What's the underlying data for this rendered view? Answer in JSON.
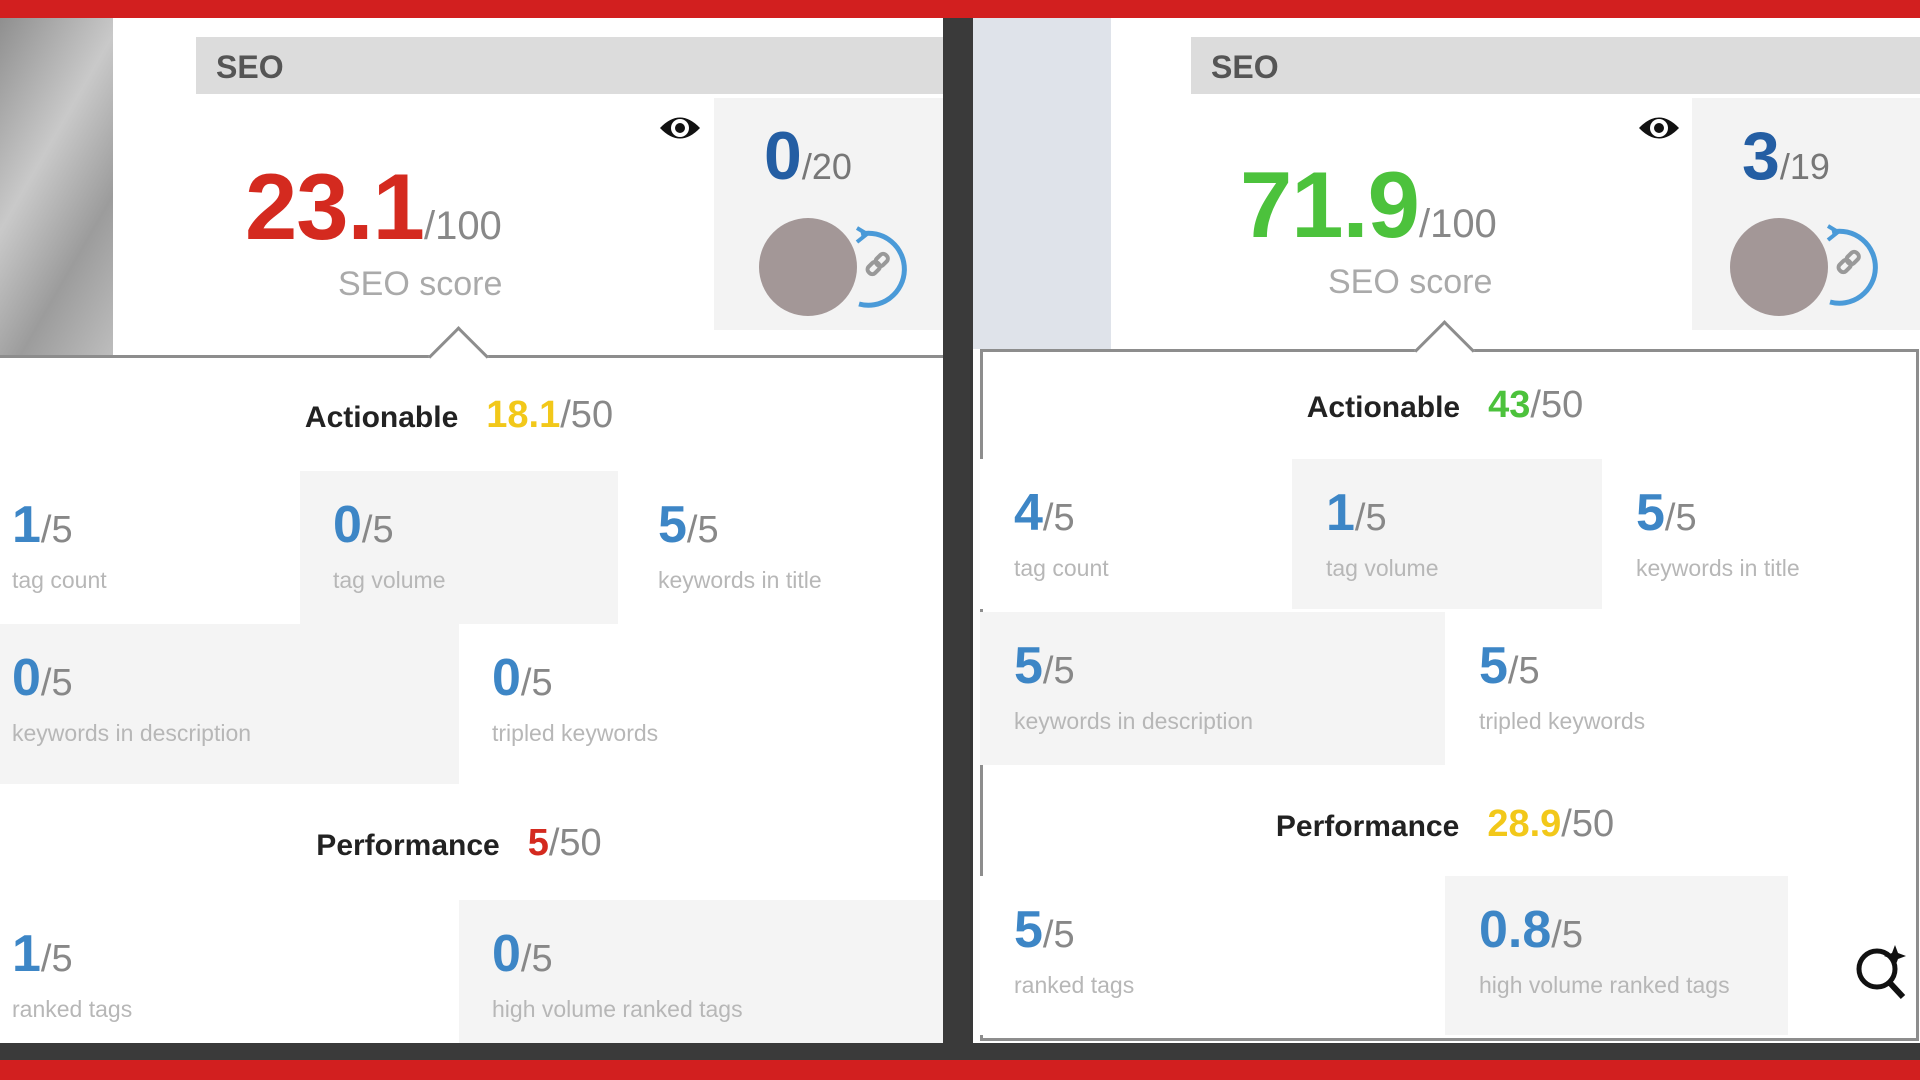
{
  "colors": {
    "frame_red": "#d21f1f",
    "score_red": "#d42a1f",
    "score_green": "#4cc23c",
    "score_yellow": "#f2c81a",
    "value_blue": "#3d86c6",
    "count_blue": "#245ea3"
  },
  "panels": [
    {
      "header": "SEO",
      "eye_icon": "eye-icon",
      "score": {
        "value": "23.1",
        "max": "/100",
        "label": "SEO score",
        "color": "#d42a1f"
      },
      "count": {
        "value": "0",
        "max": "/20"
      },
      "link_icon": "link-refresh-icon",
      "actionable": {
        "label": "Actionable",
        "value": "18.1",
        "max": "/50",
        "color": "#f2c81a"
      },
      "actionable_tiles": [
        {
          "value": "1",
          "max": "/5",
          "label": "tag count"
        },
        {
          "value": "0",
          "max": "/5",
          "label": "tag volume"
        },
        {
          "value": "5",
          "max": "/5",
          "label": "keywords in title"
        },
        {
          "value": "0",
          "max": "/5",
          "label": "keywords in description"
        },
        {
          "value": "0",
          "max": "/5",
          "label": "tripled keywords"
        }
      ],
      "performance": {
        "label": "Performance",
        "value": "5",
        "max": "/50",
        "color": "#d42a1f"
      },
      "performance_tiles": [
        {
          "value": "1",
          "max": "/5",
          "label": "ranked tags"
        },
        {
          "value": "0",
          "max": "/5",
          "label": "high volume ranked tags"
        }
      ]
    },
    {
      "header": "SEO",
      "eye_icon": "eye-icon",
      "score": {
        "value": "71.9",
        "max": "/100",
        "label": "SEO score",
        "color": "#4cc23c"
      },
      "count": {
        "value": "3",
        "max": "/19"
      },
      "link_icon": "link-refresh-icon",
      "actionable": {
        "label": "Actionable",
        "value": "43",
        "max": "/50",
        "color": "#4cc23c"
      },
      "actionable_tiles": [
        {
          "value": "4",
          "max": "/5",
          "label": "tag count"
        },
        {
          "value": "1",
          "max": "/5",
          "label": "tag volume"
        },
        {
          "value": "5",
          "max": "/5",
          "label": "keywords in title"
        },
        {
          "value": "5",
          "max": "/5",
          "label": "keywords in description"
        },
        {
          "value": "5",
          "max": "/5",
          "label": "tripled keywords"
        }
      ],
      "performance": {
        "label": "Performance",
        "value": "28.9",
        "max": "/50",
        "color": "#f2c81a"
      },
      "performance_tiles": [
        {
          "value": "5",
          "max": "/5",
          "label": "ranked tags"
        },
        {
          "value": "0.8",
          "max": "/5",
          "label": "high volume ranked tags"
        }
      ],
      "zoom_icon": "magnifier-sparkle-icon"
    }
  ]
}
